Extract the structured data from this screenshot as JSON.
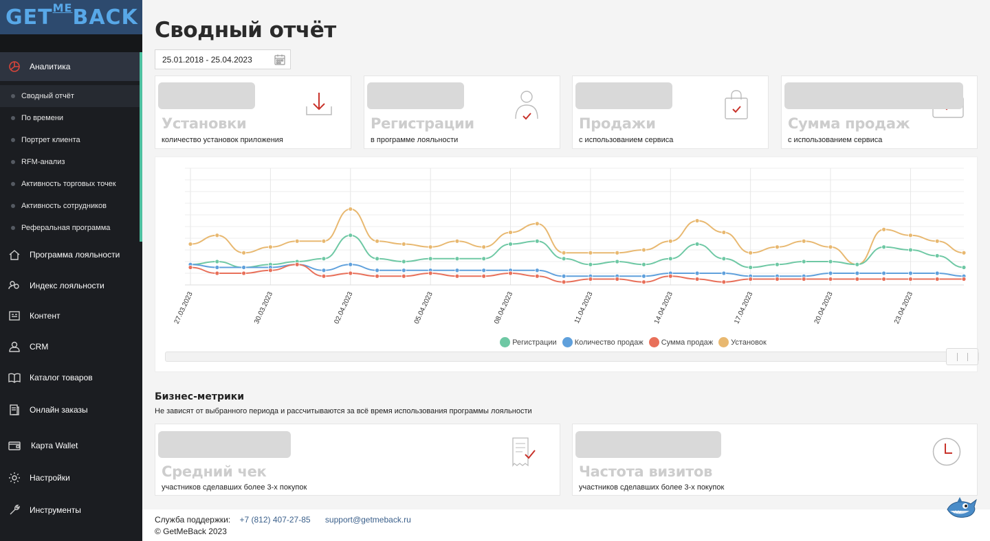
{
  "sidebar": {
    "logo": {
      "part1": "GET",
      "part2": "ME",
      "part3": "BACK"
    },
    "analytics_label": "Аналитика",
    "sub_items": [
      {
        "label": "Сводный отчёт",
        "active": true
      },
      {
        "label": "По времени"
      },
      {
        "label": "Портрет клиента"
      },
      {
        "label": "RFM-анализ"
      },
      {
        "label": "Активность торговых точек"
      },
      {
        "label": "Активность сотрудников"
      },
      {
        "label": "Реферальная программа"
      }
    ],
    "nav_items": [
      {
        "label": "Программа лояльности",
        "icon": "home-icon"
      },
      {
        "label": "Индекс лояльности",
        "icon": "people-icon"
      },
      {
        "label": "Контент",
        "icon": "content-icon"
      },
      {
        "label": "CRM",
        "icon": "user-icon"
      },
      {
        "label": "Каталог товаров",
        "icon": "book-icon"
      },
      {
        "label": "Онлайн заказы",
        "icon": "orders-icon"
      },
      {
        "label": "Карта Wallet",
        "icon": "wallet-icon"
      },
      {
        "label": "Настройки",
        "icon": "gear-icon"
      },
      {
        "label": "Инструменты",
        "icon": "wrench-icon"
      }
    ]
  },
  "main": {
    "title": "Сводный отчёт",
    "date_range": "25.01.2018 - 25.04.2023",
    "cards": [
      {
        "title": "Установки",
        "subtitle": "количество установок приложения",
        "icon": "download-icon"
      },
      {
        "title": "Регистрации",
        "subtitle": "в программе лояльности",
        "icon": "user-check-icon"
      },
      {
        "title": "Продажи",
        "subtitle": "с использованием сервиса",
        "icon": "shopping-bag-icon"
      },
      {
        "title": "Сумма продаж",
        "subtitle": "с использованием сервиса",
        "icon": "wallet-check-icon"
      }
    ],
    "business_metrics": {
      "title": "Бизнес-метрики",
      "subtitle": "Не зависят от выбранного периода и рассчитываются за всё время использования программы лояльности",
      "cards": [
        {
          "title": "Средний чек",
          "subtitle": "участников сделавших более 3-х покупок",
          "icon": "receipt-icon"
        },
        {
          "title": "Частота визитов",
          "subtitle": "участников сделавших более 3-х покупок",
          "icon": "clock-icon"
        }
      ]
    }
  },
  "chart_data": {
    "type": "line",
    "x": [
      "27.03.2023",
      "28.03.2023",
      "29.03.2023",
      "30.03.2023",
      "31.03.2023",
      "01.04.2023",
      "02.04.2023",
      "03.04.2023",
      "04.04.2023",
      "05.04.2023",
      "06.04.2023",
      "07.04.2023",
      "08.04.2023",
      "09.04.2023",
      "10.04.2023",
      "11.04.2023",
      "12.04.2023",
      "13.04.2023",
      "14.04.2023",
      "15.04.2023",
      "16.04.2023",
      "17.04.2023",
      "18.04.2023",
      "19.04.2023",
      "20.04.2023",
      "21.04.2023",
      "22.04.2023",
      "23.04.2023",
      "24.04.2023",
      "25.04.2023"
    ],
    "tick_labels": [
      "27.03.2023",
      "30.03.2023",
      "02.04.2023",
      "05.04.2023",
      "08.04.2023",
      "11.04.2023",
      "14.04.2023",
      "17.04.2023",
      "20.04.2023",
      "23.04.2023"
    ],
    "series": [
      {
        "name": "Регистрации",
        "color": "#6ec8a4",
        "values": [
          7,
          8,
          6,
          7,
          8,
          9,
          17,
          9,
          8,
          9,
          9,
          9,
          14,
          15,
          9,
          7,
          8,
          7,
          9,
          14,
          9,
          6,
          7,
          8,
          8,
          7,
          13,
          12,
          10,
          6
        ]
      },
      {
        "name": "Количество продаж",
        "color": "#5fa0dc",
        "values": [
          7,
          6,
          6,
          6,
          7,
          5,
          7,
          5,
          5,
          5,
          5,
          5,
          5,
          5,
          3,
          3,
          3,
          3,
          4,
          4,
          4,
          3,
          3,
          3,
          4,
          4,
          4,
          4,
          4,
          3
        ]
      },
      {
        "name": "Сумма продаж",
        "color": "#e8705a",
        "values": [
          6,
          4,
          4,
          5,
          7,
          3,
          4,
          3,
          3,
          4,
          3,
          3,
          4,
          3,
          1,
          2,
          2,
          1,
          3,
          2,
          1,
          2,
          2,
          2,
          2,
          2,
          2,
          2,
          2,
          2
        ]
      },
      {
        "name": "Установок",
        "color": "#e8b870",
        "values": [
          14,
          17,
          11,
          13,
          15,
          15,
          26,
          15,
          14,
          13,
          15,
          13,
          18,
          21,
          11,
          11,
          11,
          12,
          15,
          22,
          18,
          11,
          13,
          15,
          13,
          7,
          19,
          17,
          15,
          11
        ]
      }
    ],
    "grid": true,
    "legend": "bottom"
  },
  "footer": {
    "support_label": "Служба поддержки:",
    "phone": "+7 (812) 407-27-85",
    "email": "support@getmeback.ru",
    "copyright": "© GetMeBack 2023"
  }
}
